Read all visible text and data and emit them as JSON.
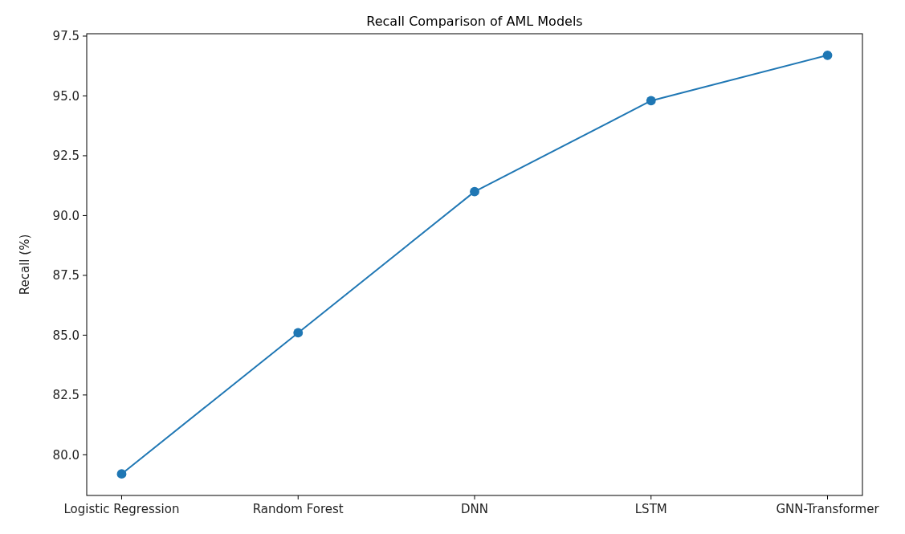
{
  "chart_data": {
    "type": "line",
    "title": "Recall Comparison of AML Models",
    "ylabel": "Recall (%)",
    "categories": [
      "Logistic Regression",
      "Random Forest",
      "DNN",
      "LSTM",
      "GNN-Transformer"
    ],
    "series": [
      {
        "color": "#1f77b4",
        "values": [
          79.2,
          85.1,
          91.0,
          94.8,
          96.7
        ]
      }
    ],
    "ylim": [
      78.3,
      97.6
    ],
    "yticks": [
      {
        "value": 80,
        "label": "80.0"
      },
      {
        "value": 82.5,
        "label": "82.5"
      },
      {
        "value": 85,
        "label": "85.0"
      },
      {
        "value": 87.5,
        "label": "87.5"
      },
      {
        "value": 90,
        "label": "90.0"
      },
      {
        "value": 92.5,
        "label": "92.5"
      },
      {
        "value": 95,
        "label": "95.0"
      },
      {
        "value": 97.5,
        "label": "97.5"
      }
    ],
    "marker": "circle",
    "grid": false
  }
}
